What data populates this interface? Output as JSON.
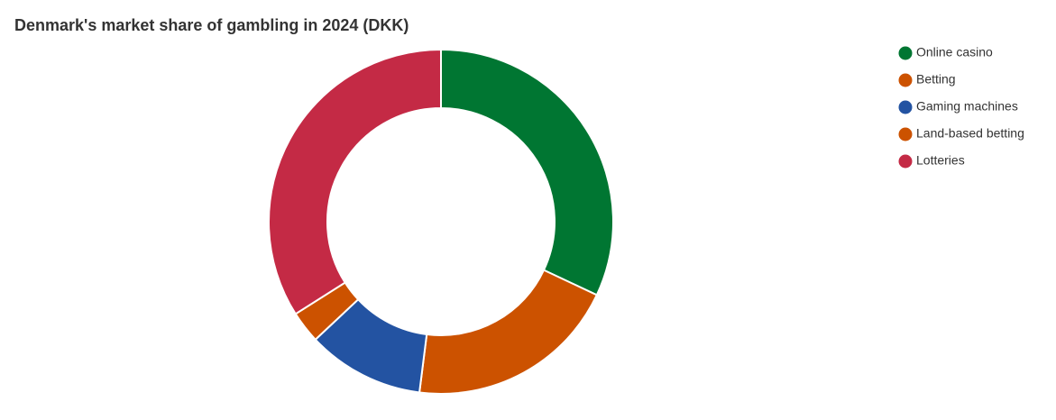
{
  "chart_data": {
    "type": "donut",
    "title": "Denmark's market share of gambling in 2024 (DKK)",
    "categories": [
      "Online casino",
      "Betting",
      "Gaming machines",
      "Land-based betting",
      "Lotteries"
    ],
    "values": [
      32,
      20,
      11,
      3,
      34
    ],
    "colors": [
      "#007632",
      "#cc5200",
      "#2353a2",
      "#cc5200",
      "#c42a45"
    ],
    "legend": "top-right"
  }
}
